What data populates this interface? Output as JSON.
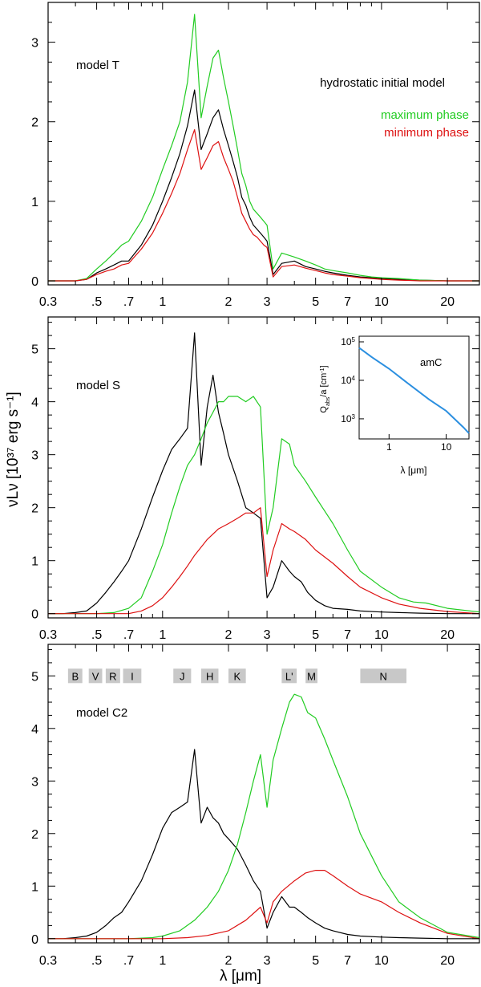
{
  "figure": {
    "y_axis_label": "νLν  [10³⁷ erg s⁻¹]",
    "x_axis_label": "λ   [μm]",
    "x_tick_labels": [
      "0.3",
      ".5",
      ".7",
      "1",
      "2",
      "3",
      "5",
      "7",
      "10",
      "20"
    ],
    "x_tick_values": [
      0.3,
      0.5,
      0.7,
      1,
      2,
      3,
      5,
      7,
      10,
      20
    ]
  },
  "colors": {
    "hydrostatic": "#000000",
    "maximum": "#22cc22",
    "minimum": "#dd1111",
    "inset": "#2b8fe0",
    "band_fill": "#c8c8c8",
    "axis": "#000000"
  },
  "legend": {
    "hydrostatic": "hydrostatic initial model",
    "maximum": "maximum phase",
    "minimum": "minimum phase"
  },
  "chart_data": [
    {
      "type": "line",
      "title": "model T",
      "xscale": "log",
      "xlim": [
        0.3,
        28
      ],
      "ylim": [
        -0.05,
        3.5
      ],
      "ytick_labels": [
        "0",
        "1",
        "2",
        "3"
      ],
      "series": [
        {
          "name": "hydrostatic initial model",
          "color": "black",
          "x": [
            0.3,
            0.35,
            0.4,
            0.45,
            0.5,
            0.55,
            0.6,
            0.65,
            0.7,
            0.8,
            0.9,
            1.0,
            1.1,
            1.2,
            1.3,
            1.4,
            1.5,
            1.6,
            1.7,
            1.8,
            1.9,
            2.0,
            2.1,
            2.2,
            2.3,
            2.4,
            2.5,
            2.6,
            2.7,
            2.8,
            2.9,
            3.0,
            3.2,
            3.5,
            4.0,
            4.5,
            5.0,
            5.5,
            6.0,
            7.0,
            8.0,
            9.0,
            10,
            12,
            15,
            20,
            28
          ],
          "y": [
            0.0,
            0.0,
            0.0,
            0.02,
            0.1,
            0.15,
            0.2,
            0.25,
            0.25,
            0.45,
            0.7,
            1.0,
            1.3,
            1.6,
            1.95,
            2.4,
            1.65,
            1.85,
            2.05,
            2.15,
            1.9,
            1.7,
            1.5,
            1.3,
            1.05,
            0.95,
            0.8,
            0.7,
            0.65,
            0.6,
            0.55,
            0.5,
            0.08,
            0.22,
            0.25,
            0.18,
            0.15,
            0.12,
            0.1,
            0.07,
            0.05,
            0.04,
            0.03,
            0.02,
            0.01,
            0.0,
            0.0
          ]
        },
        {
          "name": "maximum phase",
          "color": "green",
          "x": [
            0.3,
            0.35,
            0.4,
            0.45,
            0.5,
            0.55,
            0.6,
            0.65,
            0.7,
            0.8,
            0.9,
            1.0,
            1.1,
            1.2,
            1.3,
            1.4,
            1.5,
            1.6,
            1.7,
            1.8,
            1.9,
            2.0,
            2.1,
            2.2,
            2.3,
            2.4,
            2.5,
            2.6,
            2.7,
            2.8,
            2.9,
            3.0,
            3.2,
            3.5,
            4.0,
            4.5,
            5.0,
            5.5,
            6.0,
            7.0,
            8.0,
            9.0,
            10,
            12,
            15,
            20,
            28
          ],
          "y": [
            0.0,
            0.0,
            0.0,
            0.03,
            0.15,
            0.25,
            0.35,
            0.45,
            0.5,
            0.75,
            1.05,
            1.4,
            1.7,
            2.0,
            2.5,
            3.35,
            2.05,
            2.45,
            2.8,
            2.9,
            2.55,
            2.25,
            1.95,
            1.65,
            1.35,
            1.2,
            1.0,
            0.9,
            0.85,
            0.8,
            0.75,
            0.7,
            0.15,
            0.35,
            0.3,
            0.25,
            0.2,
            0.15,
            0.13,
            0.1,
            0.07,
            0.05,
            0.04,
            0.03,
            0.01,
            0.0,
            0.0
          ]
        },
        {
          "name": "minimum phase",
          "color": "red",
          "x": [
            0.3,
            0.35,
            0.4,
            0.45,
            0.5,
            0.55,
            0.6,
            0.65,
            0.7,
            0.8,
            0.9,
            1.0,
            1.1,
            1.2,
            1.3,
            1.4,
            1.5,
            1.6,
            1.7,
            1.8,
            1.9,
            2.0,
            2.1,
            2.2,
            2.3,
            2.4,
            2.5,
            2.6,
            2.7,
            2.8,
            2.9,
            3.0,
            3.2,
            3.5,
            4.0,
            4.5,
            5.0,
            5.5,
            6.0,
            7.0,
            8.0,
            9.0,
            10,
            12,
            15,
            20,
            28
          ],
          "y": [
            0.0,
            0.0,
            0.0,
            0.02,
            0.08,
            0.12,
            0.15,
            0.2,
            0.22,
            0.4,
            0.6,
            0.85,
            1.1,
            1.35,
            1.65,
            1.9,
            1.4,
            1.55,
            1.7,
            1.75,
            1.55,
            1.4,
            1.25,
            1.05,
            0.85,
            0.75,
            0.65,
            0.58,
            0.55,
            0.5,
            0.45,
            0.42,
            0.05,
            0.18,
            0.2,
            0.16,
            0.13,
            0.1,
            0.08,
            0.06,
            0.04,
            0.03,
            0.02,
            0.01,
            0.0,
            0.0,
            0.0
          ]
        }
      ]
    },
    {
      "type": "line",
      "title": "model S",
      "xscale": "log",
      "xlim": [
        0.3,
        28
      ],
      "ylim": [
        -0.08,
        5.6
      ],
      "ytick_labels": [
        "0",
        "1",
        "2",
        "3",
        "4",
        "5"
      ],
      "series": [
        {
          "name": "hydrostatic initial model",
          "color": "black",
          "x": [
            0.3,
            0.35,
            0.4,
            0.45,
            0.5,
            0.55,
            0.6,
            0.65,
            0.7,
            0.8,
            0.9,
            1.0,
            1.1,
            1.2,
            1.3,
            1.4,
            1.5,
            1.6,
            1.7,
            1.8,
            1.9,
            2.0,
            2.2,
            2.4,
            2.6,
            2.8,
            3.0,
            3.2,
            3.5,
            3.8,
            4.0,
            4.3,
            4.6,
            5.0,
            5.5,
            6.0,
            7.0,
            8.0,
            10,
            12,
            15,
            20,
            28
          ],
          "y": [
            0.0,
            0.0,
            0.02,
            0.05,
            0.2,
            0.4,
            0.6,
            0.8,
            1.0,
            1.6,
            2.2,
            2.7,
            3.1,
            3.3,
            3.5,
            5.3,
            2.8,
            3.9,
            4.5,
            3.8,
            3.4,
            3.0,
            2.5,
            2.0,
            1.9,
            1.8,
            0.3,
            0.5,
            1.0,
            0.8,
            0.7,
            0.6,
            0.4,
            0.25,
            0.15,
            0.1,
            0.08,
            0.05,
            0.03,
            0.02,
            0.01,
            0.0,
            0.0
          ]
        },
        {
          "name": "maximum phase",
          "color": "green",
          "x": [
            0.3,
            0.4,
            0.5,
            0.6,
            0.7,
            0.8,
            0.9,
            1.0,
            1.1,
            1.2,
            1.3,
            1.4,
            1.5,
            1.6,
            1.7,
            1.8,
            1.9,
            2.0,
            2.2,
            2.4,
            2.6,
            2.8,
            3.0,
            3.2,
            3.5,
            3.8,
            4.0,
            4.5,
            5.0,
            6.0,
            7.0,
            8.0,
            10,
            12,
            14,
            16,
            20,
            28
          ],
          "y": [
            0.0,
            0.0,
            0.0,
            0.02,
            0.1,
            0.3,
            0.8,
            1.3,
            1.9,
            2.4,
            2.8,
            3.0,
            3.3,
            3.6,
            3.8,
            4.0,
            4.0,
            4.1,
            4.1,
            4.0,
            4.1,
            3.9,
            1.5,
            2.0,
            3.3,
            3.2,
            2.8,
            2.5,
            2.2,
            1.7,
            1.2,
            0.8,
            0.5,
            0.3,
            0.22,
            0.2,
            0.1,
            0.03
          ]
        },
        {
          "name": "minimum phase",
          "color": "red",
          "x": [
            0.3,
            0.5,
            0.7,
            0.8,
            0.9,
            1.0,
            1.1,
            1.2,
            1.3,
            1.4,
            1.6,
            1.8,
            2.0,
            2.2,
            2.4,
            2.6,
            2.8,
            3.0,
            3.2,
            3.5,
            3.8,
            4.0,
            4.5,
            5.0,
            6.0,
            7.0,
            8.0,
            10,
            12,
            15,
            20,
            28
          ],
          "y": [
            0.0,
            0.0,
            0.0,
            0.05,
            0.15,
            0.3,
            0.5,
            0.7,
            0.9,
            1.1,
            1.4,
            1.6,
            1.7,
            1.8,
            1.9,
            1.9,
            2.0,
            0.7,
            1.2,
            1.7,
            1.6,
            1.55,
            1.4,
            1.2,
            0.95,
            0.7,
            0.5,
            0.3,
            0.18,
            0.1,
            0.04,
            0.0
          ]
        }
      ],
      "inset": {
        "type": "line",
        "title": "amC",
        "xscale": "log",
        "yscale": "log",
        "xlim": [
          0.3,
          25
        ],
        "ylim": [
          300,
          140000
        ],
        "xlabel": "λ   [μm]",
        "ylabel": "Q_abs/a  [cm⁻¹]",
        "ylabel_main": "Q",
        "ylabel_sub": "abs",
        "ylabel_rest": "/a  [cm",
        "ylabel_exp": "-1",
        "ylabel_close": "]",
        "xtick_labels": [
          "1",
          "10"
        ],
        "ytick_bases": [
          "10",
          "10",
          "10"
        ],
        "ytick_exps": [
          "3",
          "4",
          "5"
        ],
        "series": [
          {
            "name": "amC",
            "color": "blue",
            "x": [
              0.3,
              0.5,
              1,
              2,
              5,
              10,
              20,
              25
            ],
            "y": [
              70000,
              40000,
              20000,
              9000,
              3200,
              1600,
              600,
              420
            ]
          }
        ]
      }
    },
    {
      "type": "line",
      "title": "model C2",
      "xscale": "log",
      "xlim": [
        0.3,
        28
      ],
      "ylim": [
        -0.08,
        5.6
      ],
      "ytick_labels": [
        "0",
        "1",
        "2",
        "3",
        "4",
        "5"
      ],
      "bands": [
        {
          "label": "B",
          "lo": 0.37,
          "hi": 0.43
        },
        {
          "label": "V",
          "lo": 0.46,
          "hi": 0.53
        },
        {
          "label": "R",
          "lo": 0.55,
          "hi": 0.64
        },
        {
          "label": "I",
          "lo": 0.66,
          "hi": 0.8
        },
        {
          "label": "J",
          "lo": 1.12,
          "hi": 1.35
        },
        {
          "label": "H",
          "lo": 1.5,
          "hi": 1.8
        },
        {
          "label": "K",
          "lo": 2.0,
          "hi": 2.4
        },
        {
          "label": "L'",
          "lo": 3.5,
          "hi": 4.1
        },
        {
          "label": "M",
          "lo": 4.5,
          "hi": 5.1
        },
        {
          "label": "N",
          "lo": 8.0,
          "hi": 13.0
        }
      ],
      "series": [
        {
          "name": "hydrostatic initial model",
          "color": "black",
          "x": [
            0.3,
            0.35,
            0.4,
            0.45,
            0.5,
            0.55,
            0.6,
            0.65,
            0.7,
            0.8,
            0.9,
            1.0,
            1.1,
            1.2,
            1.3,
            1.4,
            1.5,
            1.6,
            1.7,
            1.8,
            1.9,
            2.0,
            2.2,
            2.4,
            2.6,
            2.8,
            3.0,
            3.2,
            3.5,
            3.8,
            4.0,
            4.3,
            4.6,
            5.0,
            5.5,
            6.0,
            7.0,
            8.0,
            10,
            12,
            15,
            20,
            28
          ],
          "y": [
            0.0,
            0.0,
            0.02,
            0.05,
            0.12,
            0.25,
            0.4,
            0.5,
            0.7,
            1.1,
            1.6,
            2.1,
            2.4,
            2.5,
            2.6,
            3.6,
            2.2,
            2.5,
            2.3,
            2.2,
            2.0,
            1.9,
            1.7,
            1.4,
            1.1,
            0.9,
            0.2,
            0.5,
            0.8,
            0.6,
            0.6,
            0.5,
            0.4,
            0.3,
            0.2,
            0.15,
            0.08,
            0.05,
            0.03,
            0.02,
            0.01,
            0.0,
            0.0
          ]
        },
        {
          "name": "maximum phase",
          "color": "green",
          "x": [
            0.3,
            0.7,
            0.9,
            1.0,
            1.2,
            1.4,
            1.6,
            1.8,
            2.0,
            2.2,
            2.4,
            2.6,
            2.8,
            3.0,
            3.2,
            3.5,
            3.8,
            4.0,
            4.3,
            4.6,
            5.0,
            5.5,
            6.0,
            7.0,
            8.0,
            10,
            12,
            15,
            20,
            28
          ],
          "y": [
            0.0,
            0.0,
            0.02,
            0.05,
            0.15,
            0.35,
            0.6,
            0.9,
            1.3,
            1.8,
            2.4,
            3.0,
            3.5,
            2.5,
            3.4,
            4.0,
            4.5,
            4.65,
            4.6,
            4.3,
            4.2,
            3.8,
            3.4,
            2.7,
            2.0,
            1.2,
            0.7,
            0.4,
            0.12,
            0.02
          ]
        },
        {
          "name": "minimum phase",
          "color": "red",
          "x": [
            0.3,
            1.0,
            1.3,
            1.6,
            2.0,
            2.4,
            2.8,
            3.0,
            3.2,
            3.5,
            4.0,
            4.5,
            5.0,
            5.5,
            6.0,
            7.0,
            8.0,
            10,
            12,
            15,
            20,
            28
          ],
          "y": [
            0.0,
            0.0,
            0.02,
            0.06,
            0.15,
            0.35,
            0.6,
            0.3,
            0.7,
            0.9,
            1.1,
            1.25,
            1.3,
            1.3,
            1.2,
            1.0,
            0.85,
            0.7,
            0.5,
            0.3,
            0.1,
            0.0
          ]
        }
      ]
    }
  ]
}
